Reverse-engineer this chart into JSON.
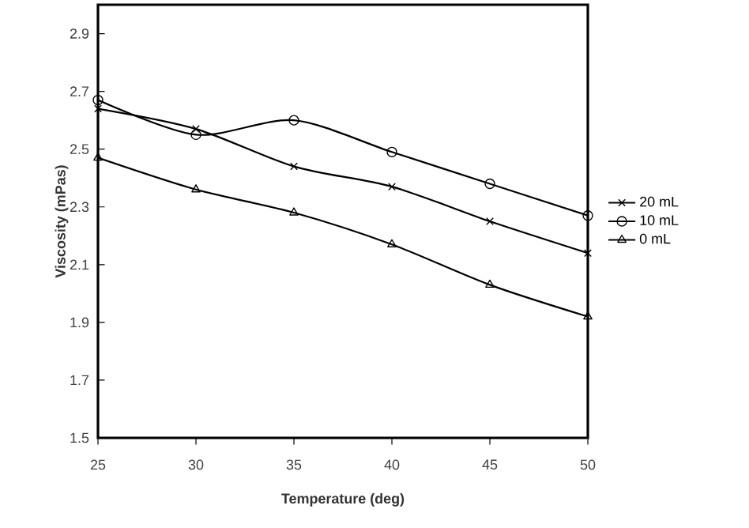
{
  "chart_data": {
    "type": "line",
    "xlabel": "Temperature (deg)",
    "ylabel": "Viscosity (mPas)",
    "x": [
      25,
      30,
      35,
      40,
      45,
      50
    ],
    "series": [
      {
        "name": "20 mL",
        "color": "#000000",
        "marker": "cross",
        "values": [
          2.64,
          2.57,
          2.44,
          2.37,
          2.25,
          2.14
        ]
      },
      {
        "name": "10 mL",
        "color": "#000000",
        "marker": "circle",
        "values": [
          2.67,
          2.55,
          2.6,
          2.49,
          2.38,
          2.27
        ]
      },
      {
        "name": "0 mL",
        "color": "#000000",
        "marker": "triangle",
        "values": [
          2.47,
          2.36,
          2.28,
          2.17,
          2.03,
          1.92
        ]
      }
    ],
    "xlim": [
      25,
      50
    ],
    "xticks": [
      25,
      30,
      35,
      40,
      45,
      50
    ],
    "ylim": [
      1.5,
      3.0
    ],
    "yticks": [
      1.5,
      1.7,
      1.9,
      2.1,
      2.3,
      2.5,
      2.7,
      2.9
    ],
    "grid": false,
    "legend": "right"
  }
}
